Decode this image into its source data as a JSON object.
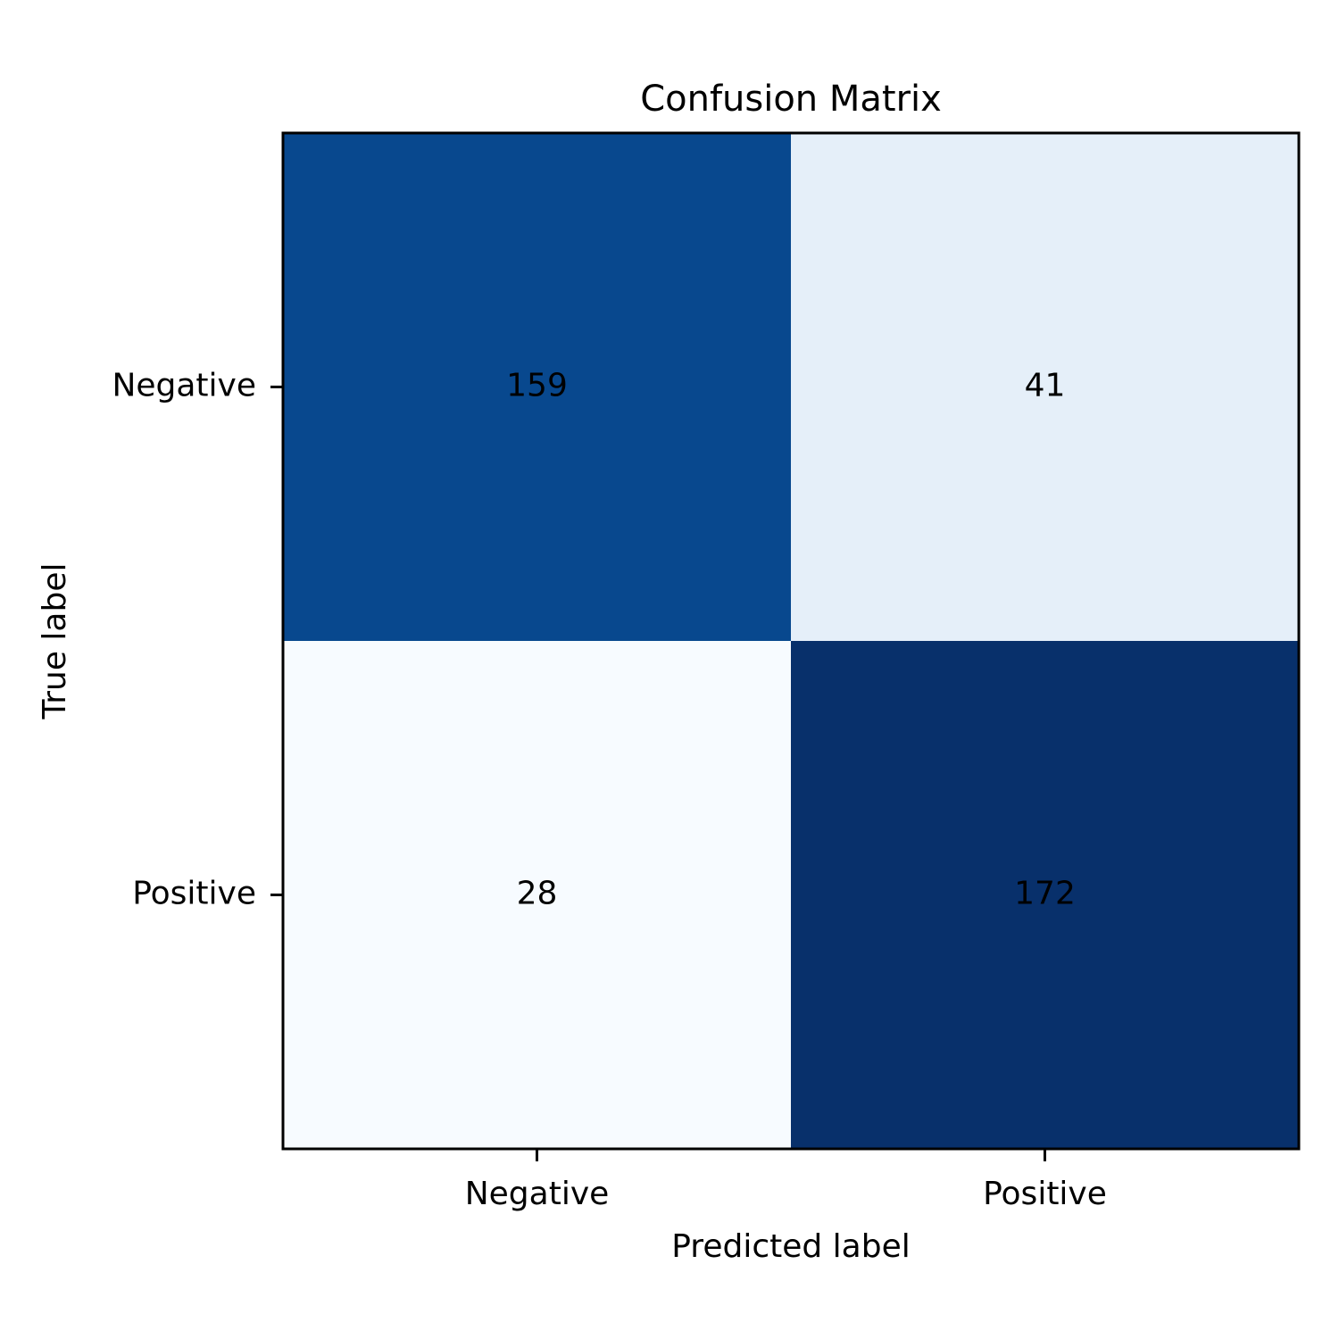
{
  "chart_data": {
    "type": "heatmap",
    "title": "Confusion Matrix",
    "xlabel": "Predicted label",
    "ylabel": "True label",
    "x_categories": [
      "Negative",
      "Positive"
    ],
    "y_categories": [
      "Negative",
      "Positive"
    ],
    "values": [
      [
        159,
        41
      ],
      [
        28,
        172
      ]
    ],
    "colormap": "Blues",
    "color_min_value": 28,
    "color_max_value": 172,
    "grid": false,
    "legend": "none",
    "colorbar": false
  }
}
